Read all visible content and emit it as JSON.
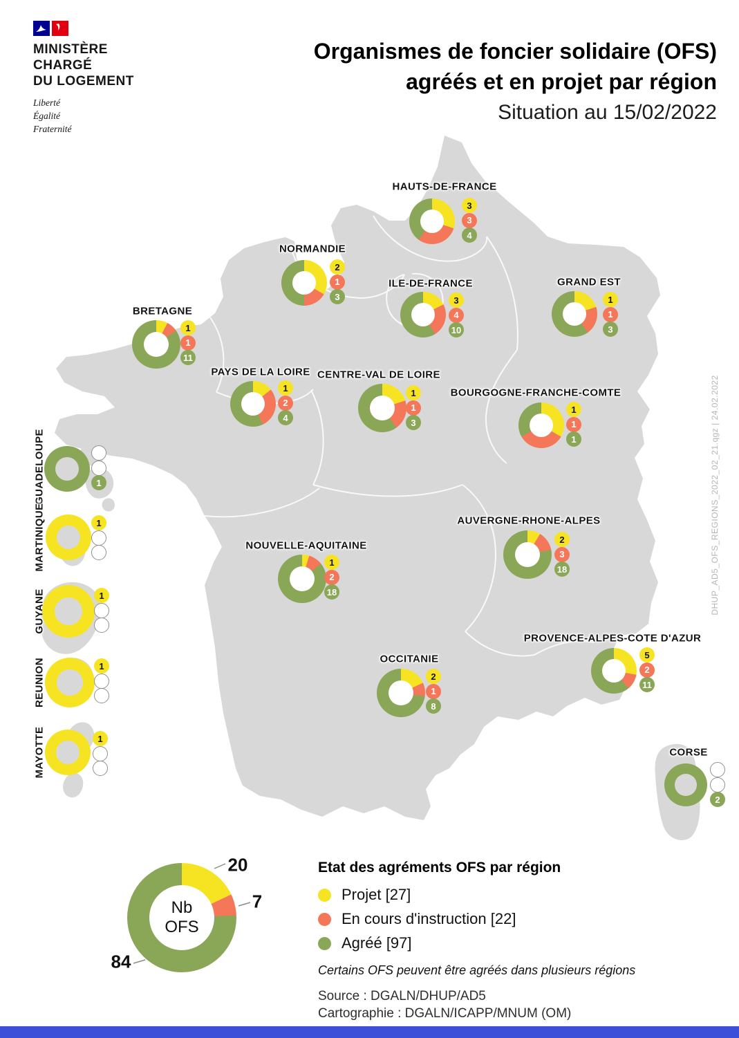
{
  "header": {
    "ministry_lines": [
      "MINISTÈRE",
      "CHARGÉ",
      "DU LOGEMENT"
    ],
    "motto_lines": [
      "Liberté",
      "Égalité",
      "Fraternité"
    ],
    "title_line1": "Organismes de foncier solidaire (OFS)",
    "title_line2": "agréés et en projet par région",
    "subtitle": "Situation au 15/02/2022"
  },
  "colors": {
    "projet": "#f6e422",
    "instruction": "#f4775a",
    "agree": "#8aa657",
    "map": "#d8d8d8",
    "empty_badge_border": "#909090",
    "footer_bar": "#3d4ed8",
    "muted": "#b5b5b5"
  },
  "chart_data": {
    "type": "pie",
    "title": "Organismes de foncier solidaire (OFS) agréés et en projet par région",
    "subtitle": "Situation au 15/02/2022",
    "series_labels": [
      "Projet",
      "En cours d'instruction",
      "Agréé"
    ],
    "totals": {
      "projet": 27,
      "instruction": 22,
      "agree": 97
    },
    "summary": {
      "center_line1": "Nb",
      "center_line2": "OFS",
      "projet": 20,
      "instruction": 7,
      "agree": 84
    },
    "regions": [
      {
        "id": "hauts-de-france",
        "label": "HAUTS-DE-FRANCE",
        "projet": 3,
        "instruction": 3,
        "agree": 4
      },
      {
        "id": "normandie",
        "label": "NORMANDIE",
        "projet": 2,
        "instruction": 1,
        "agree": 3
      },
      {
        "id": "ile-de-france",
        "label": "ILE-DE-FRANCE",
        "projet": 3,
        "instruction": 4,
        "agree": 10
      },
      {
        "id": "grand-est",
        "label": "GRAND EST",
        "projet": 1,
        "instruction": 1,
        "agree": 3
      },
      {
        "id": "bretagne",
        "label": "BRETAGNE",
        "projet": 1,
        "instruction": 1,
        "agree": 11
      },
      {
        "id": "pays-de-la-loire",
        "label": "PAYS DE LA LOIRE",
        "projet": 1,
        "instruction": 2,
        "agree": 4
      },
      {
        "id": "centre-val-de-loire",
        "label": "CENTRE-VAL DE LOIRE",
        "projet": 1,
        "instruction": 1,
        "agree": 3
      },
      {
        "id": "bourgogne-franche-comte",
        "label": "BOURGOGNE-FRANCHE-COMTE",
        "projet": 1,
        "instruction": 1,
        "agree": 1
      },
      {
        "id": "nouvelle-aquitaine",
        "label": "NOUVELLE-AQUITAINE",
        "projet": 1,
        "instruction": 2,
        "agree": 18
      },
      {
        "id": "auvergne-rhone-alpes",
        "label": "AUVERGNE-RHONE-ALPES",
        "projet": 2,
        "instruction": 3,
        "agree": 18
      },
      {
        "id": "occitanie",
        "label": "OCCITANIE",
        "projet": 2,
        "instruction": 1,
        "agree": 8
      },
      {
        "id": "provence-alpes-cote-d-azur",
        "label": "PROVENCE-ALPES-COTE D'AZUR",
        "projet": 5,
        "instruction": 2,
        "agree": 11
      },
      {
        "id": "corse",
        "label": "CORSE",
        "projet": null,
        "instruction": null,
        "agree": 2
      },
      {
        "id": "guadeloupe",
        "label": "GUADELOUPE",
        "projet": null,
        "instruction": null,
        "agree": 1
      },
      {
        "id": "martinique",
        "label": "MARTINIQUE",
        "projet": 1,
        "instruction": null,
        "agree": null
      },
      {
        "id": "guyane",
        "label": "GUYANE",
        "projet": 1,
        "instruction": null,
        "agree": null
      },
      {
        "id": "reunion",
        "label": "REUNION",
        "projet": 1,
        "instruction": null,
        "agree": null
      },
      {
        "id": "mayotte",
        "label": "MAYOTTE",
        "projet": 1,
        "instruction": null,
        "agree": null
      }
    ]
  },
  "legend": {
    "title": "Etat des agréments OFS par région",
    "items": [
      {
        "label": "Projet [27]",
        "color_key": "projet"
      },
      {
        "label": "En cours d'instruction [22]",
        "color_key": "instruction"
      },
      {
        "label": "Agréé [97]",
        "color_key": "agree"
      }
    ],
    "note": "Certains OFS peuvent être agréés dans plusieurs régions",
    "source": "Source : DGALN/DHUP/AD5",
    "cartography": "Cartographie : DGALN/ICAPP/MNUM (OM)"
  },
  "side_note": "DHUP_AD5_OFS_REGIONS_2022_02_21.qgz | 24.02.2022"
}
